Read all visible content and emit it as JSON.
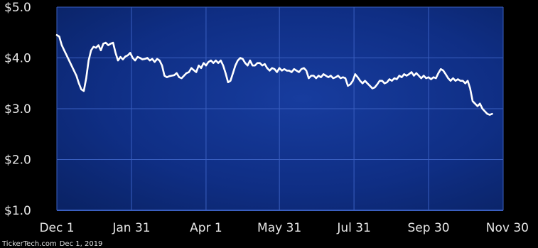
{
  "chart_data": {
    "type": "line",
    "title": "",
    "xlabel": "",
    "ylabel": "",
    "ylim": [
      1.0,
      5.0
    ],
    "y_ticks": [
      {
        "value": 5.0,
        "label": "$5.0"
      },
      {
        "value": 4.0,
        "label": "$4.0"
      },
      {
        "value": 3.0,
        "label": "$3.0"
      },
      {
        "value": 2.0,
        "label": "$2.0"
      },
      {
        "value": 1.0,
        "label": "$1.0"
      }
    ],
    "x_ticks": [
      {
        "label": "Dec 1",
        "day": 0
      },
      {
        "label": "Jan 31",
        "day": 61
      },
      {
        "label": "Apr 1",
        "day": 122
      },
      {
        "label": "May 31",
        "day": 182
      },
      {
        "label": "Jul 31",
        "day": 243
      },
      {
        "label": "Sep 30",
        "day": 304
      },
      {
        "label": "Nov 30",
        "day": 365
      }
    ],
    "xlim_days": [
      0,
      365
    ],
    "grid": true,
    "colors": {
      "plot_background": "#0d2a7a",
      "gridline": "#3a5fc0",
      "line": "#ffffff",
      "axis": "#cfd8ff"
    },
    "series": [
      {
        "points": [
          [
            0,
            4.45
          ],
          [
            2,
            4.42
          ],
          [
            4,
            4.25
          ],
          [
            6,
            4.15
          ],
          [
            8,
            4.05
          ],
          [
            10,
            3.95
          ],
          [
            12,
            3.85
          ],
          [
            14,
            3.75
          ],
          [
            16,
            3.65
          ],
          [
            18,
            3.5
          ],
          [
            20,
            3.38
          ],
          [
            22,
            3.35
          ],
          [
            24,
            3.6
          ],
          [
            26,
            3.95
          ],
          [
            28,
            4.15
          ],
          [
            30,
            4.22
          ],
          [
            32,
            4.2
          ],
          [
            34,
            4.25
          ],
          [
            36,
            4.15
          ],
          [
            38,
            4.28
          ],
          [
            40,
            4.3
          ],
          [
            42,
            4.25
          ],
          [
            44,
            4.28
          ],
          [
            46,
            4.3
          ],
          [
            48,
            4.1
          ],
          [
            50,
            3.95
          ],
          [
            52,
            4.02
          ],
          [
            54,
            3.97
          ],
          [
            56,
            4.03
          ],
          [
            58,
            4.05
          ],
          [
            60,
            4.1
          ],
          [
            62,
            4.0
          ],
          [
            64,
            3.95
          ],
          [
            66,
            4.02
          ],
          [
            68,
            4.0
          ],
          [
            70,
            3.97
          ],
          [
            72,
            3.98
          ],
          [
            74,
            4.0
          ],
          [
            76,
            3.95
          ],
          [
            78,
            3.98
          ],
          [
            80,
            3.92
          ],
          [
            82,
            3.98
          ],
          [
            84,
            3.95
          ],
          [
            86,
            3.85
          ],
          [
            88,
            3.65
          ],
          [
            90,
            3.62
          ],
          [
            92,
            3.64
          ],
          [
            94,
            3.65
          ],
          [
            96,
            3.66
          ],
          [
            98,
            3.7
          ],
          [
            100,
            3.62
          ],
          [
            102,
            3.6
          ],
          [
            104,
            3.65
          ],
          [
            106,
            3.7
          ],
          [
            108,
            3.72
          ],
          [
            110,
            3.8
          ],
          [
            112,
            3.76
          ],
          [
            114,
            3.72
          ],
          [
            116,
            3.85
          ],
          [
            118,
            3.8
          ],
          [
            120,
            3.9
          ],
          [
            122,
            3.85
          ],
          [
            124,
            3.92
          ],
          [
            126,
            3.95
          ],
          [
            128,
            3.9
          ],
          [
            130,
            3.95
          ],
          [
            132,
            3.9
          ],
          [
            134,
            3.95
          ],
          [
            136,
            3.85
          ],
          [
            138,
            3.7
          ],
          [
            140,
            3.52
          ],
          [
            142,
            3.55
          ],
          [
            144,
            3.7
          ],
          [
            146,
            3.85
          ],
          [
            148,
            3.95
          ],
          [
            150,
            4.0
          ],
          [
            152,
            3.98
          ],
          [
            154,
            3.9
          ],
          [
            156,
            3.85
          ],
          [
            158,
            3.95
          ],
          [
            160,
            3.85
          ],
          [
            162,
            3.85
          ],
          [
            164,
            3.9
          ],
          [
            166,
            3.9
          ],
          [
            168,
            3.85
          ],
          [
            170,
            3.88
          ],
          [
            172,
            3.8
          ],
          [
            174,
            3.75
          ],
          [
            176,
            3.8
          ],
          [
            178,
            3.78
          ],
          [
            180,
            3.72
          ],
          [
            182,
            3.8
          ],
          [
            184,
            3.75
          ],
          [
            186,
            3.78
          ],
          [
            188,
            3.75
          ],
          [
            190,
            3.75
          ],
          [
            192,
            3.72
          ],
          [
            194,
            3.78
          ],
          [
            196,
            3.75
          ],
          [
            198,
            3.72
          ],
          [
            200,
            3.78
          ],
          [
            202,
            3.8
          ],
          [
            204,
            3.75
          ],
          [
            206,
            3.6
          ],
          [
            208,
            3.65
          ],
          [
            210,
            3.65
          ],
          [
            212,
            3.6
          ],
          [
            214,
            3.65
          ],
          [
            216,
            3.62
          ],
          [
            218,
            3.68
          ],
          [
            220,
            3.65
          ],
          [
            222,
            3.62
          ],
          [
            224,
            3.65
          ],
          [
            226,
            3.6
          ],
          [
            228,
            3.62
          ],
          [
            230,
            3.65
          ],
          [
            232,
            3.6
          ],
          [
            234,
            3.62
          ],
          [
            236,
            3.6
          ],
          [
            238,
            3.45
          ],
          [
            240,
            3.48
          ],
          [
            242,
            3.55
          ],
          [
            244,
            3.68
          ],
          [
            246,
            3.62
          ],
          [
            248,
            3.55
          ],
          [
            250,
            3.5
          ],
          [
            252,
            3.55
          ],
          [
            254,
            3.5
          ],
          [
            256,
            3.45
          ],
          [
            258,
            3.4
          ],
          [
            260,
            3.42
          ],
          [
            262,
            3.48
          ],
          [
            264,
            3.55
          ],
          [
            266,
            3.55
          ],
          [
            268,
            3.5
          ],
          [
            270,
            3.52
          ],
          [
            272,
            3.58
          ],
          [
            274,
            3.55
          ],
          [
            276,
            3.6
          ],
          [
            278,
            3.58
          ],
          [
            280,
            3.65
          ],
          [
            282,
            3.62
          ],
          [
            284,
            3.68
          ],
          [
            286,
            3.65
          ],
          [
            288,
            3.68
          ],
          [
            290,
            3.72
          ],
          [
            292,
            3.65
          ],
          [
            294,
            3.7
          ],
          [
            296,
            3.65
          ],
          [
            298,
            3.6
          ],
          [
            300,
            3.65
          ],
          [
            302,
            3.6
          ],
          [
            304,
            3.62
          ],
          [
            306,
            3.58
          ],
          [
            308,
            3.62
          ],
          [
            310,
            3.6
          ],
          [
            312,
            3.7
          ],
          [
            314,
            3.78
          ],
          [
            316,
            3.75
          ],
          [
            318,
            3.68
          ],
          [
            320,
            3.6
          ],
          [
            322,
            3.55
          ],
          [
            324,
            3.6
          ],
          [
            326,
            3.55
          ],
          [
            328,
            3.58
          ],
          [
            330,
            3.55
          ],
          [
            332,
            3.55
          ],
          [
            334,
            3.5
          ],
          [
            336,
            3.55
          ],
          [
            338,
            3.4
          ],
          [
            340,
            3.15
          ],
          [
            342,
            3.1
          ],
          [
            344,
            3.05
          ],
          [
            346,
            3.1
          ],
          [
            348,
            3.0
          ],
          [
            350,
            2.95
          ],
          [
            352,
            2.9
          ],
          [
            354,
            2.88
          ],
          [
            356,
            2.9
          ]
        ]
      }
    ]
  },
  "credit": {
    "source": "TickerTech.com",
    "date": "Dec 1, 2019"
  }
}
